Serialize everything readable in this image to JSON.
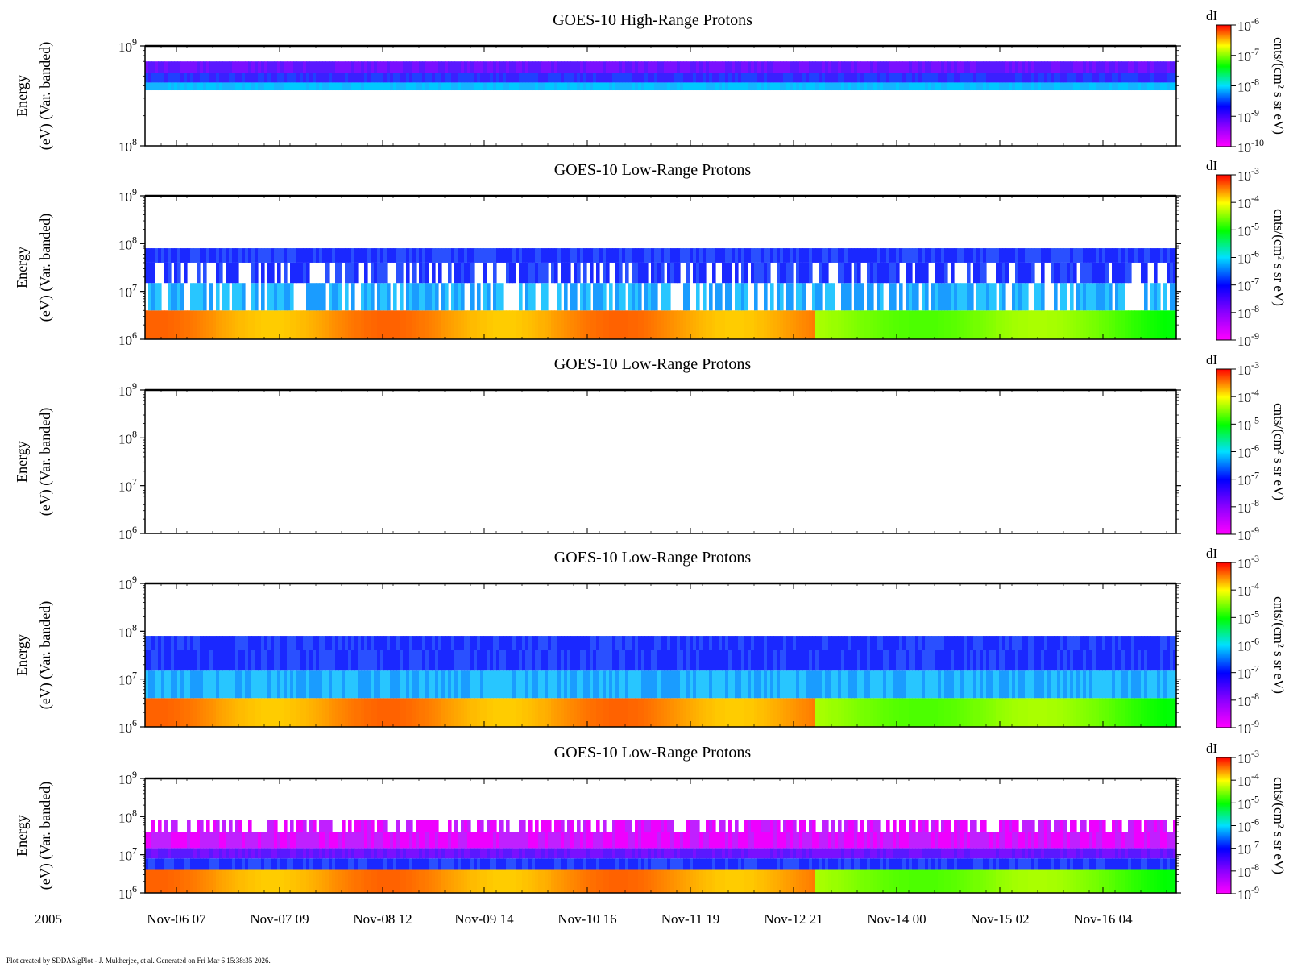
{
  "figure": {
    "year_label": "2005",
    "footer": "Plot created by SDDAS/gPlot - J. Mukherjee, et al.  Generated on Fri Mar 6 15:38:35 2026.",
    "x_ticks": [
      "Nov-06 07",
      "Nov-07 09",
      "Nov-08 12",
      "Nov-09 14",
      "Nov-10 16",
      "Nov-11 19",
      "Nov-12 21",
      "Nov-14 00",
      "Nov-15 02",
      "Nov-16 04"
    ],
    "y_label_line1": "Energy",
    "y_label_line2": "(eV) (Var. banded)",
    "colorbar_label": "cnts/(cm² s sr eV)",
    "colorbar_top_label": "dI"
  },
  "chart_data": [
    {
      "type": "heatmap",
      "title": "GOES-10 High-Range Protons",
      "ylabel": "Energy (eV) (Var. banded)",
      "y_scale": "log",
      "y_ticks": [
        "10^8",
        "10^9"
      ],
      "y_decade_range": [
        8,
        9
      ],
      "colorbar_ticks": [
        "10^-10",
        "10^-9",
        "10^-8",
        "10^-7",
        "10^-6"
      ],
      "bands": [
        {
          "energy_range_eV": [
            430000000.0,
            540000000.0
          ],
          "level": "blue-purple"
        },
        {
          "energy_range_eV": [
            360000000.0,
            430000000.0
          ],
          "level": "cyan"
        },
        {
          "energy_range_eV": [
            540000000.0,
            700000000.0
          ],
          "level": "violet"
        }
      ]
    },
    {
      "type": "heatmap",
      "title": "GOES-10 Low-Range Protons",
      "ylabel": "Energy (eV) (Var. banded)",
      "y_scale": "log",
      "y_ticks": [
        "10^6",
        "10^7",
        "10^8",
        "10^9"
      ],
      "y_decade_range": [
        6,
        9
      ],
      "colorbar_ticks": [
        "10^-9",
        "10^-8",
        "10^-7",
        "10^-6",
        "10^-5",
        "10^-4",
        "10^-3"
      ],
      "bands": [
        {
          "energy_range_eV": [
            1000000.0,
            4000000.0
          ],
          "level": "yellow-orange, green after Nov-12 21"
        },
        {
          "energy_range_eV": [
            4000000.0,
            15000000.0
          ],
          "level": "light blue (sparse)"
        },
        {
          "energy_range_eV": [
            15000000.0,
            40000000.0
          ],
          "level": "blue (sparse)"
        },
        {
          "energy_range_eV": [
            40000000.0,
            80000000.0
          ],
          "level": "blue"
        }
      ]
    },
    {
      "type": "heatmap",
      "title": "GOES-10 Low-Range Protons",
      "ylabel": "Energy (eV) (Var. banded)",
      "y_scale": "log",
      "y_ticks": [
        "10^6",
        "10^7",
        "10^8",
        "10^9"
      ],
      "y_decade_range": [
        6,
        9
      ],
      "colorbar_ticks": [
        "10^-9",
        "10^-8",
        "10^-7",
        "10^-6",
        "10^-5",
        "10^-4",
        "10^-3"
      ],
      "bands": []
    },
    {
      "type": "heatmap",
      "title": "GOES-10 Low-Range Protons",
      "ylabel": "Energy (eV) (Var. banded)",
      "y_scale": "log",
      "y_ticks": [
        "10^6",
        "10^7",
        "10^8",
        "10^9"
      ],
      "y_decade_range": [
        6,
        9
      ],
      "colorbar_ticks": [
        "10^-9",
        "10^-8",
        "10^-7",
        "10^-6",
        "10^-5",
        "10^-4",
        "10^-3"
      ],
      "bands": [
        {
          "energy_range_eV": [
            1000000.0,
            4000000.0
          ],
          "level": "yellow-orange, green after Nov-12 21"
        },
        {
          "energy_range_eV": [
            4000000.0,
            15000000.0
          ],
          "level": "light blue"
        },
        {
          "energy_range_eV": [
            15000000.0,
            40000000.0
          ],
          "level": "blue"
        },
        {
          "energy_range_eV": [
            40000000.0,
            80000000.0
          ],
          "level": "blue"
        }
      ]
    },
    {
      "type": "heatmap",
      "title": "GOES-10 Low-Range Protons",
      "ylabel": "Energy (eV) (Var. banded)",
      "y_scale": "log",
      "y_ticks": [
        "10^6",
        "10^7",
        "10^8",
        "10^9"
      ],
      "y_decade_range": [
        6,
        9
      ],
      "colorbar_ticks": [
        "10^-9",
        "10^-8",
        "10^-7",
        "10^-6",
        "10^-5",
        "10^-4",
        "10^-3"
      ],
      "bands": [
        {
          "energy_range_eV": [
            1000000.0,
            4000000.0
          ],
          "level": "yellow-orange, green after Nov-12 21"
        },
        {
          "energy_range_eV": [
            4000000.0,
            8000000.0
          ],
          "level": "blue"
        },
        {
          "energy_range_eV": [
            8000000.0,
            15000000.0
          ],
          "level": "violet"
        },
        {
          "energy_range_eV": [
            15000000.0,
            40000000.0
          ],
          "level": "magenta"
        },
        {
          "energy_range_eV": [
            40000000.0,
            80000000.0
          ],
          "level": "magenta (sparse)"
        }
      ]
    }
  ]
}
